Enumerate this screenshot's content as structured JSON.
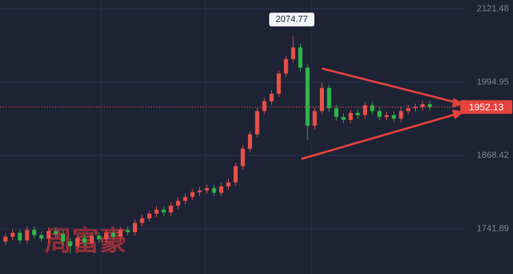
{
  "chart_data": {
    "type": "candlestick",
    "watermark": "周富豪",
    "up_color": "#e8504a",
    "down_color": "#2fb34a",
    "ylim": [
      1663.85,
      2136.85
    ],
    "yticks": [
      1741.89,
      1868.42,
      1994.95,
      2121.48
    ],
    "grid": true,
    "open": [
      1720,
      1728,
      1735,
      1722,
      1740,
      1731,
      1725,
      1738,
      1733,
      1720,
      1712,
      1726,
      1718,
      1730,
      1724,
      1735,
      1728,
      1740,
      1736,
      1752,
      1760,
      1768,
      1775,
      1770,
      1782,
      1790,
      1797,
      1805,
      1808,
      1812,
      1804,
      1815,
      1822,
      1850,
      1880,
      1905,
      1945,
      1962,
      1975,
      2010,
      2035,
      2055,
      2020,
      1920,
      1945,
      1985,
      1950,
      1935,
      1930,
      1942,
      1938,
      1955,
      1945,
      1935,
      1938,
      1932,
      1945,
      1950,
      1952,
      1957
    ],
    "high": [
      1734,
      1741,
      1741,
      1746,
      1746,
      1737,
      1744,
      1744,
      1739,
      1726,
      1732,
      1732,
      1736,
      1736,
      1741,
      1741,
      1746,
      1746,
      1758,
      1766,
      1774,
      1781,
      1781,
      1788,
      1796,
      1803,
      1811,
      1814,
      1818,
      1818,
      1821,
      1828,
      1856,
      1886,
      1911,
      1951,
      1968,
      1981,
      2016,
      2041,
      2074.77,
      2061,
      2026,
      1951,
      1995,
      1991,
      1956,
      1941,
      1948,
      1948,
      1961,
      1961,
      1951,
      1944,
      1944,
      1951,
      1956,
      1958,
      1963,
      1963
    ],
    "low": [
      1714,
      1722,
      1716,
      1716,
      1725,
      1719,
      1719,
      1727,
      1714,
      1700,
      1706,
      1712,
      1712,
      1718,
      1718,
      1722,
      1722,
      1730,
      1730,
      1746,
      1754,
      1762,
      1764,
      1764,
      1776,
      1784,
      1791,
      1799,
      1802,
      1798,
      1798,
      1809,
      1816,
      1844,
      1874,
      1899,
      1939,
      1956,
      1969,
      2004,
      2029,
      2014,
      1895,
      1914,
      1939,
      1944,
      1929,
      1924,
      1924,
      1932,
      1932,
      1939,
      1929,
      1929,
      1926,
      1926,
      1939,
      1944,
      1946,
      1946
    ],
    "close": [
      1728,
      1735,
      1722,
      1740,
      1731,
      1725,
      1738,
      1733,
      1720,
      1712,
      1726,
      1718,
      1730,
      1724,
      1735,
      1728,
      1740,
      1736,
      1752,
      1760,
      1768,
      1775,
      1770,
      1782,
      1790,
      1797,
      1805,
      1808,
      1812,
      1804,
      1815,
      1822,
      1850,
      1880,
      1905,
      1945,
      1962,
      1975,
      2010,
      2035,
      2055,
      2020,
      1920,
      1945,
      1985,
      1950,
      1935,
      1930,
      1942,
      1938,
      1955,
      1945,
      1935,
      1938,
      1932,
      1945,
      1950,
      1952,
      1957,
      1952.13
    ]
  }
}
